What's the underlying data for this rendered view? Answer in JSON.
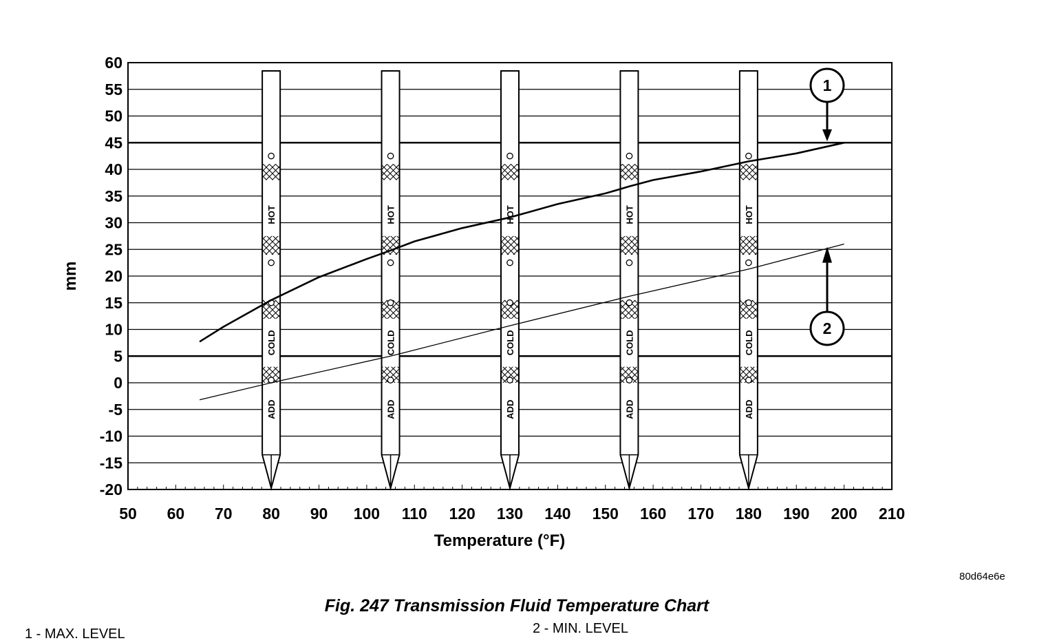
{
  "chart_data": {
    "type": "line",
    "xlabel": "Temperature (°F)",
    "ylabel": "mm",
    "xlim": [
      50,
      210
    ],
    "ylim": [
      -20,
      60
    ],
    "x_ticks": [
      "50",
      "60",
      "70",
      "80",
      "90",
      "100",
      "110",
      "120",
      "130",
      "140",
      "150",
      "160",
      "170",
      "180",
      "190",
      "200",
      "210"
    ],
    "y_ticks": [
      "60",
      "55",
      "50",
      "45",
      "40",
      "35",
      "30",
      "25",
      "20",
      "15",
      "10",
      "5",
      "0",
      "-5",
      "-10",
      "-15",
      "-20"
    ],
    "grid": true,
    "series": [
      {
        "callout": "1",
        "x": [
          65,
          70,
          80,
          90,
          100,
          105,
          110,
          120,
          130,
          140,
          150,
          155,
          160,
          170,
          180,
          190,
          200
        ],
        "y": [
          7.7,
          10.5,
          15.5,
          19.8,
          23.2,
          24.8,
          26.5,
          29,
          31,
          33.5,
          35.5,
          36.8,
          38,
          39.6,
          41.5,
          43,
          45
        ]
      },
      {
        "callout": "2",
        "x": [
          65,
          80,
          105,
          130,
          155,
          180,
          200
        ],
        "y": [
          -3.2,
          0,
          5,
          10.7,
          16.2,
          21.3,
          26
        ]
      }
    ],
    "dipsticks": {
      "x": [
        80,
        105,
        130,
        155,
        180
      ],
      "labels": {
        "add": "ADD",
        "cold": "COLD",
        "hot": "HOT"
      }
    },
    "callouts": [
      "1",
      "2"
    ]
  },
  "figure_code": "80d64e6e",
  "caption": "Fig. 247 Transmission Fluid Temperature Chart",
  "legend": {
    "item1": "1 - MAX. LEVEL",
    "item2": "2 - MIN. LEVEL"
  }
}
